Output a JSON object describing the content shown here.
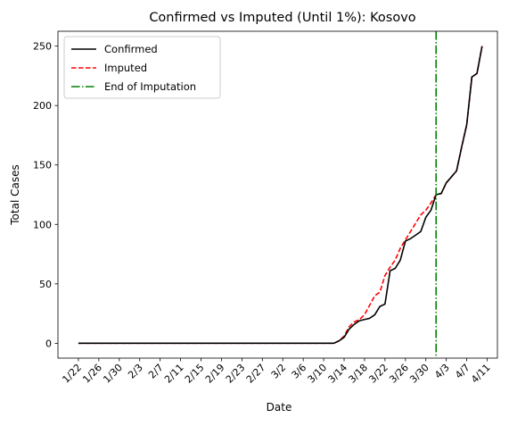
{
  "chart_data": {
    "type": "line",
    "title": "Confirmed vs Imputed (Until 1%): Kosovo",
    "xlabel": "Date",
    "ylabel": "Total Cases",
    "x_tick_labels": [
      "1/22",
      "1/26",
      "1/30",
      "2/3",
      "2/7",
      "2/11",
      "2/15",
      "2/19",
      "2/23",
      "2/27",
      "3/2",
      "3/6",
      "3/10",
      "3/14",
      "3/18",
      "3/22",
      "3/26",
      "3/30",
      "4/3",
      "4/7",
      "4/11"
    ],
    "y_ticks": [
      0,
      50,
      100,
      150,
      200,
      250
    ],
    "xlim": [
      "1/18",
      "4/13"
    ],
    "ylim": [
      -12.5,
      262.5
    ],
    "grid": false,
    "legend_position": "upper left",
    "series": [
      {
        "name": "Confirmed",
        "color": "#000000",
        "style": "solid",
        "points": [
          [
            "1/22",
            0
          ],
          [
            "3/12",
            0
          ],
          [
            "3/13",
            2
          ],
          [
            "3/14",
            5
          ],
          [
            "3/15",
            12
          ],
          [
            "3/16",
            16
          ],
          [
            "3/17",
            19
          ],
          [
            "3/18",
            20
          ],
          [
            "3/19",
            21
          ],
          [
            "3/20",
            24
          ],
          [
            "3/21",
            31
          ],
          [
            "3/22",
            33
          ],
          [
            "3/23",
            61
          ],
          [
            "3/24",
            63
          ],
          [
            "3/25",
            70
          ],
          [
            "3/26",
            86
          ],
          [
            "3/27",
            88
          ],
          [
            "3/28",
            91
          ],
          [
            "3/29",
            94
          ],
          [
            "3/30",
            106
          ],
          [
            "3/31",
            112
          ],
          [
            "4/1",
            125
          ],
          [
            "4/2",
            126
          ],
          [
            "4/3",
            135
          ],
          [
            "4/4",
            140
          ],
          [
            "4/5",
            145
          ],
          [
            "4/6",
            165
          ],
          [
            "4/7",
            184
          ],
          [
            "4/8",
            224
          ],
          [
            "4/9",
            227
          ],
          [
            "4/10",
            250
          ]
        ]
      },
      {
        "name": "Imputed",
        "color": "#ff0000",
        "style": "dashed",
        "points": [
          [
            "1/22",
            0
          ],
          [
            "3/12",
            0
          ],
          [
            "3/13",
            2
          ],
          [
            "3/14",
            6
          ],
          [
            "3/15",
            14
          ],
          [
            "3/16",
            18
          ],
          [
            "3/17",
            20
          ],
          [
            "3/18",
            24
          ],
          [
            "3/19",
            32
          ],
          [
            "3/20",
            40
          ],
          [
            "3/21",
            43
          ],
          [
            "3/22",
            57
          ],
          [
            "3/23",
            64
          ],
          [
            "3/24",
            70
          ],
          [
            "3/25",
            80
          ],
          [
            "3/26",
            87
          ],
          [
            "3/27",
            94
          ],
          [
            "3/28",
            101
          ],
          [
            "3/29",
            108
          ],
          [
            "3/30",
            112
          ],
          [
            "3/31",
            118
          ],
          [
            "4/1",
            125
          ],
          [
            "4/2",
            126
          ],
          [
            "4/3",
            135
          ],
          [
            "4/4",
            140
          ],
          [
            "4/5",
            145
          ],
          [
            "4/6",
            165
          ],
          [
            "4/7",
            184
          ],
          [
            "4/8",
            224
          ],
          [
            "4/9",
            227
          ],
          [
            "4/10",
            250
          ]
        ]
      }
    ],
    "vertical_line": {
      "name": "End of Imputation",
      "x": "4/1",
      "color": "#008000",
      "style": "dashdot"
    }
  }
}
